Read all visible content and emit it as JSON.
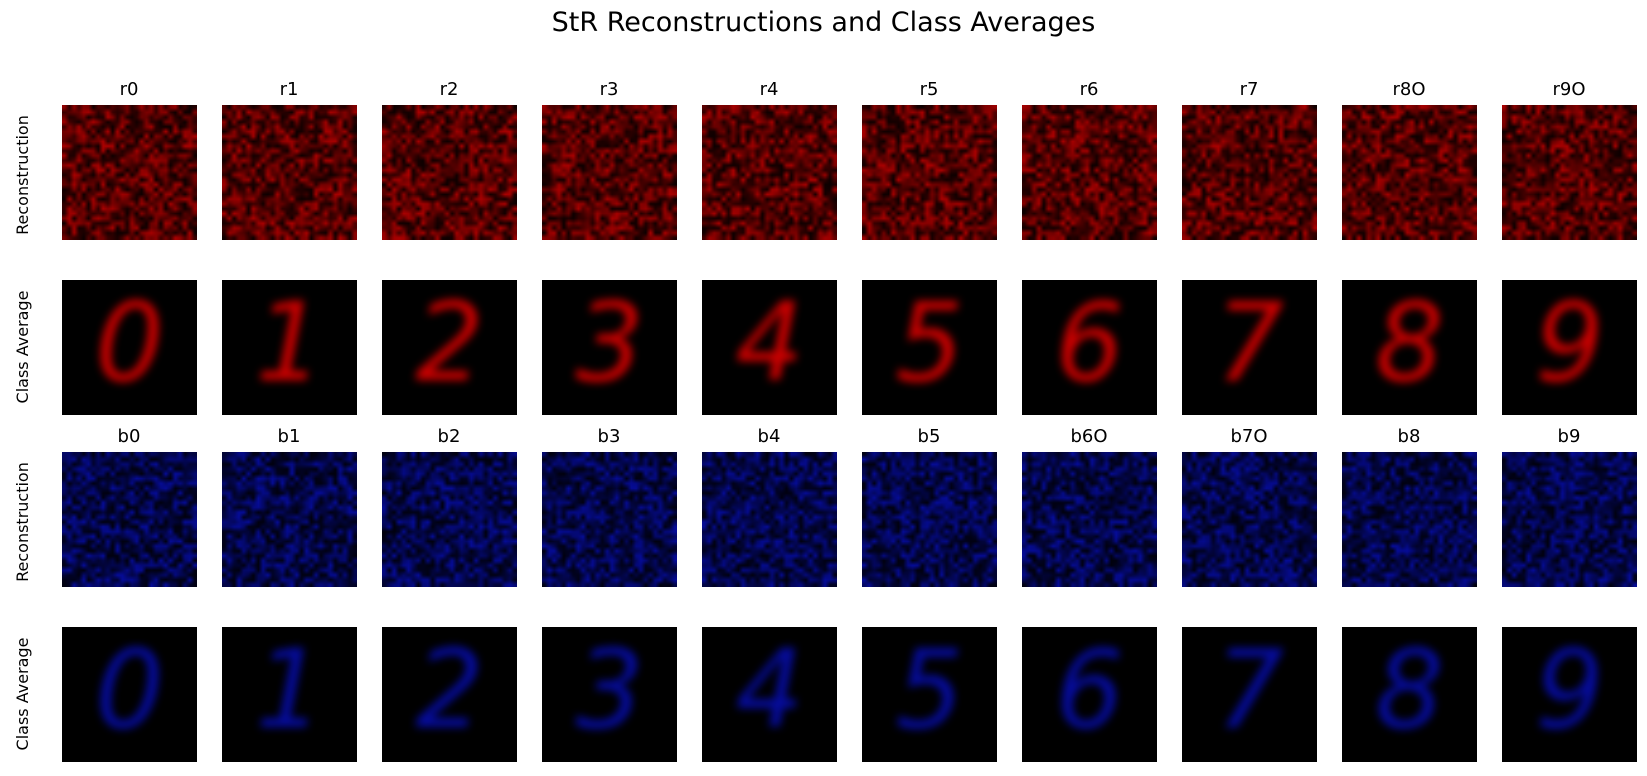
{
  "figure": {
    "title": "StR Reconstructions and Class Averages",
    "groups": [
      {
        "color": "#ff0000",
        "titles": [
          "r0",
          "r1",
          "r2",
          "r3",
          "r4",
          "r5",
          "r6",
          "r7",
          "r8O",
          "r9O"
        ],
        "row_labels": {
          "reconstruction": "Reconstruction",
          "class_average": "Class Average"
        }
      },
      {
        "color": "#0a14ff",
        "titles": [
          "b0",
          "b1",
          "b2",
          "b3",
          "b4",
          "b5",
          "b6O",
          "b7O",
          "b8",
          "b9"
        ],
        "row_labels": {
          "reconstruction": "Reconstruction",
          "class_average": "Class Average"
        }
      }
    ],
    "class_digits": [
      "0",
      "1",
      "2",
      "3",
      "4",
      "5",
      "6",
      "7",
      "8",
      "9"
    ]
  }
}
